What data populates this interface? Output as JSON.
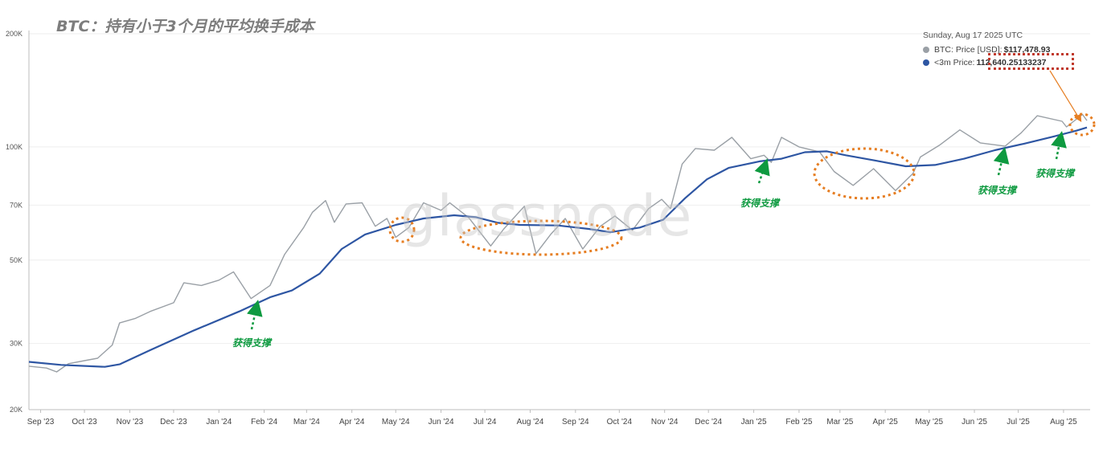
{
  "title": "BTC：持有小于3个月的平均换手成本",
  "watermark": "glassnode",
  "tooltip": {
    "date": "Sunday, Aug 17 2025 UTC",
    "price_label": "BTC: Price [USD]:",
    "price_value": "$117,478.93",
    "cost_label": "<3m Price:",
    "cost_value": "112,640.25133237"
  },
  "support_label": "获得支撑",
  "colors": {
    "price": "#9aa0a6",
    "cost": "#2e56a3",
    "ellipse": "#e67e22",
    "support": "#0e9a40",
    "highlight": "#c0392b"
  },
  "chart_data": {
    "type": "line",
    "title": "BTC：持有小于3个月的平均换手成本",
    "y_scale": "log",
    "ylim": [
      20000,
      200000
    ],
    "y_ticks": [
      20000,
      30000,
      50000,
      70000,
      100000,
      200000
    ],
    "y_tick_labels": [
      "20K",
      "30K",
      "50K",
      "70K",
      "100K",
      "200K"
    ],
    "x_range": [
      "2023-08-24",
      "2025-08-17"
    ],
    "x_ticks": [
      "2023-09-01",
      "2023-10-01",
      "2023-11-01",
      "2023-12-01",
      "2024-01-01",
      "2024-02-01",
      "2024-03-01",
      "2024-04-01",
      "2024-05-01",
      "2024-06-01",
      "2024-07-01",
      "2024-08-01",
      "2024-09-01",
      "2024-10-01",
      "2024-11-01",
      "2024-12-01",
      "2025-01-01",
      "2025-02-01",
      "2025-03-01",
      "2025-04-01",
      "2025-05-01",
      "2025-06-01",
      "2025-07-01",
      "2025-08-01"
    ],
    "x_tick_labels": [
      "Sep '23",
      "Oct '23",
      "Nov '23",
      "Dec '23",
      "Jan '24",
      "Feb '24",
      "Mar '24",
      "Apr '24",
      "May '24",
      "Jun '24",
      "Jul '24",
      "Aug '24",
      "Sep '24",
      "Oct '24",
      "Nov '24",
      "Dec '24",
      "Jan '25",
      "Feb '25",
      "Mar '25",
      "Apr '25",
      "May '25",
      "Jun '25",
      "Jul '25",
      "Aug '25"
    ],
    "series": [
      {
        "name": "BTC: Price [USD]",
        "points": [
          [
            "2023-08-24",
            26100
          ],
          [
            "2023-09-05",
            25800
          ],
          [
            "2023-09-12",
            25200
          ],
          [
            "2023-09-20",
            26500
          ],
          [
            "2023-10-01",
            27000
          ],
          [
            "2023-10-10",
            27400
          ],
          [
            "2023-10-20",
            29700
          ],
          [
            "2023-10-25",
            34000
          ],
          [
            "2023-11-05",
            35000
          ],
          [
            "2023-11-15",
            36500
          ],
          [
            "2023-12-01",
            38500
          ],
          [
            "2023-12-08",
            43500
          ],
          [
            "2023-12-20",
            42800
          ],
          [
            "2024-01-01",
            44200
          ],
          [
            "2024-01-11",
            46500
          ],
          [
            "2024-01-23",
            39500
          ],
          [
            "2024-02-05",
            42800
          ],
          [
            "2024-02-15",
            51800
          ],
          [
            "2024-02-28",
            61000
          ],
          [
            "2024-03-05",
            67000
          ],
          [
            "2024-03-14",
            72000
          ],
          [
            "2024-03-20",
            63000
          ],
          [
            "2024-03-28",
            70500
          ],
          [
            "2024-04-08",
            71000
          ],
          [
            "2024-04-17",
            61500
          ],
          [
            "2024-04-25",
            64500
          ],
          [
            "2024-05-01",
            57500
          ],
          [
            "2024-05-10",
            61000
          ],
          [
            "2024-05-20",
            71000
          ],
          [
            "2024-06-01",
            67800
          ],
          [
            "2024-06-07",
            71000
          ],
          [
            "2024-06-20",
            64800
          ],
          [
            "2024-07-05",
            54500
          ],
          [
            "2024-07-14",
            60500
          ],
          [
            "2024-07-28",
            69500
          ],
          [
            "2024-08-05",
            52000
          ],
          [
            "2024-08-15",
            58500
          ],
          [
            "2024-08-25",
            64500
          ],
          [
            "2024-09-06",
            53500
          ],
          [
            "2024-09-18",
            61500
          ],
          [
            "2024-09-28",
            65500
          ],
          [
            "2024-10-10",
            60000
          ],
          [
            "2024-10-21",
            68500
          ],
          [
            "2024-10-30",
            72500
          ],
          [
            "2024-11-05",
            68500
          ],
          [
            "2024-11-13",
            90000
          ],
          [
            "2024-11-22",
            99000
          ],
          [
            "2024-12-05",
            98000
          ],
          [
            "2024-12-17",
            106000
          ],
          [
            "2024-12-30",
            93000
          ],
          [
            "2025-01-08",
            95000
          ],
          [
            "2025-01-13",
            91000
          ],
          [
            "2025-01-20",
            106000
          ],
          [
            "2025-02-01",
            100000
          ],
          [
            "2025-02-15",
            97000
          ],
          [
            "2025-02-25",
            86000
          ],
          [
            "2025-03-10",
            79000
          ],
          [
            "2025-03-24",
            87500
          ],
          [
            "2025-04-08",
            76500
          ],
          [
            "2025-04-20",
            85000
          ],
          [
            "2025-04-25",
            94000
          ],
          [
            "2025-05-08",
            101000
          ],
          [
            "2025-05-22",
            111000
          ],
          [
            "2025-06-05",
            102500
          ],
          [
            "2025-06-22",
            100500
          ],
          [
            "2025-07-03",
            109000
          ],
          [
            "2025-07-14",
            121000
          ],
          [
            "2025-07-31",
            117000
          ],
          [
            "2025-08-03",
            113000
          ],
          [
            "2025-08-14",
            122000
          ],
          [
            "2025-08-17",
            117478.93
          ]
        ]
      },
      {
        "name": "<3m Price",
        "points": [
          [
            "2023-08-24",
            26800
          ],
          [
            "2023-09-15",
            26300
          ],
          [
            "2023-10-15",
            26000
          ],
          [
            "2023-10-25",
            26400
          ],
          [
            "2023-11-15",
            28800
          ],
          [
            "2023-12-15",
            32500
          ],
          [
            "2024-01-15",
            36500
          ],
          [
            "2024-02-05",
            39800
          ],
          [
            "2024-02-20",
            41500
          ],
          [
            "2024-03-10",
            46000
          ],
          [
            "2024-03-25",
            53500
          ],
          [
            "2024-04-10",
            58500
          ],
          [
            "2024-05-01",
            62000
          ],
          [
            "2024-05-20",
            64500
          ],
          [
            "2024-06-10",
            65800
          ],
          [
            "2024-06-25",
            65000
          ],
          [
            "2024-07-10",
            62800
          ],
          [
            "2024-07-25",
            62000
          ],
          [
            "2024-08-20",
            61800
          ],
          [
            "2024-09-10",
            60500
          ],
          [
            "2024-09-25",
            59300
          ],
          [
            "2024-10-15",
            61000
          ],
          [
            "2024-10-31",
            64000
          ],
          [
            "2024-11-15",
            73000
          ],
          [
            "2024-11-30",
            82000
          ],
          [
            "2024-12-15",
            88000
          ],
          [
            "2025-01-05",
            91500
          ],
          [
            "2025-01-20",
            93000
          ],
          [
            "2025-02-05",
            96800
          ],
          [
            "2025-02-20",
            97300
          ],
          [
            "2025-03-05",
            95000
          ],
          [
            "2025-03-25",
            92000
          ],
          [
            "2025-04-15",
            88800
          ],
          [
            "2025-05-05",
            89500
          ],
          [
            "2025-05-25",
            93000
          ],
          [
            "2025-06-15",
            98000
          ],
          [
            "2025-07-05",
            102000
          ],
          [
            "2025-07-25",
            106500
          ],
          [
            "2025-08-10",
            110500
          ],
          [
            "2025-08-17",
            112640.25133237
          ]
        ]
      }
    ]
  }
}
